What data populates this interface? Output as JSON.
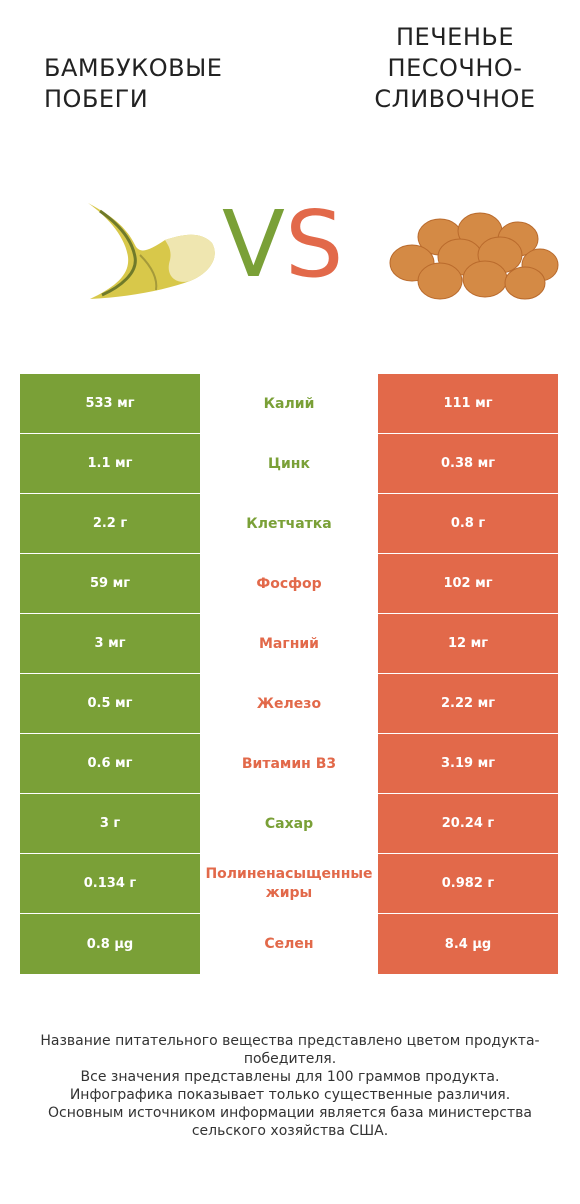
{
  "header": {
    "left_title": "БАМБУКОВЫЕ ПОБЕГИ",
    "right_title": "ПЕЧЕНЬЕ ПЕСОЧНО-СЛИВОЧНОЕ",
    "vs_v": "V",
    "vs_s": "S"
  },
  "colors": {
    "left_accent": "#7aa037",
    "right_accent": "#e2694a"
  },
  "rows": [
    {
      "left": "533 мг",
      "name": "Калий",
      "right": "111 мг",
      "winner": "left"
    },
    {
      "left": "1.1 мг",
      "name": "Цинк",
      "right": "0.38 мг",
      "winner": "left"
    },
    {
      "left": "2.2 г",
      "name": "Клетчатка",
      "right": "0.8 г",
      "winner": "left"
    },
    {
      "left": "59 мг",
      "name": "Фосфор",
      "right": "102 мг",
      "winner": "right"
    },
    {
      "left": "3 мг",
      "name": "Магний",
      "right": "12 мг",
      "winner": "right"
    },
    {
      "left": "0.5 мг",
      "name": "Железо",
      "right": "2.22 мг",
      "winner": "right"
    },
    {
      "left": "0.6 мг",
      "name": "Витамин B3",
      "right": "3.19 мг",
      "winner": "right"
    },
    {
      "left": "3 г",
      "name": "Сахар",
      "right": "20.24 г",
      "winner": "left"
    },
    {
      "left": "0.134 г",
      "name": "Полиненасыщенные жиры",
      "right": "0.982 г",
      "winner": "right"
    },
    {
      "left": "0.8 µg",
      "name": "Селен",
      "right": "8.4 µg",
      "winner": "right"
    }
  ],
  "footer": {
    "line1": "Название питательного вещества представлено цветом продукта-победителя.",
    "line2": "Все значения представлены для 100 граммов продукта.",
    "line3": "Инфографика показывает только существенные различия.",
    "line4": "Основным источником информации является база министерства сельского хозяйства США."
  }
}
